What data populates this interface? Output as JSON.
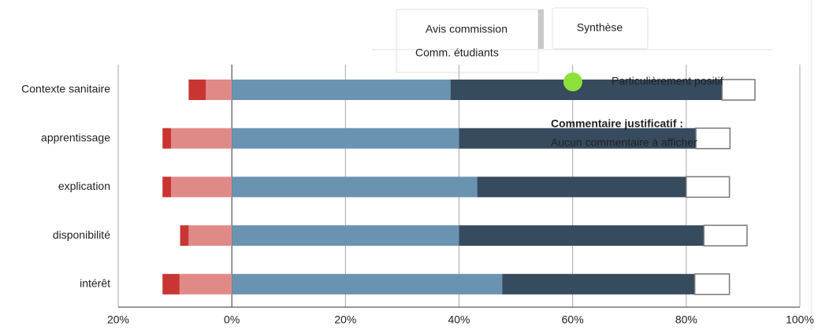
{
  "chart_data": {
    "type": "diverging-bar",
    "categories": [
      "Contexte sanitaire",
      "apprentissage",
      "explication",
      "disponibilité",
      "intérêt"
    ],
    "series": [
      {
        "color": "#e08a88",
        "values": [
          -4.6,
          -10.7,
          -10.7,
          -7.6,
          -9.2
        ]
      },
      {
        "color": "#c93532",
        "values": [
          -3,
          -1.5,
          -1.5,
          -1.5,
          -3
        ]
      },
      {
        "color": "#6a93b2",
        "values": [
          38.5,
          40,
          43.2,
          40,
          47.6
        ]
      },
      {
        "color": "#364b5e",
        "values": [
          47.8,
          41.7,
          36.8,
          43.1,
          33.9
        ]
      },
      {
        "color": "#ffffff",
        "values": [
          5.8,
          6,
          7.6,
          7.6,
          6.1
        ]
      }
    ],
    "xlim": [
      -20,
      100
    ],
    "xticks": [
      {
        "value": -20,
        "label": "20%"
      },
      {
        "value": 0,
        "label": "0%"
      },
      {
        "value": 20,
        "label": "20%"
      },
      {
        "value": 40,
        "label": "40%"
      },
      {
        "value": 60,
        "label": "60%"
      },
      {
        "value": 80,
        "label": "80%"
      },
      {
        "value": 100,
        "label": "100%"
      }
    ],
    "grid": true
  },
  "tabs": [
    "Avis commission",
    "Comm. étudiants",
    "Synthèse"
  ],
  "tooltip": {
    "status": "Particulièrement positif",
    "heading": "Commentaire justificatif :",
    "text": "Aucun commentaire à afficher"
  }
}
